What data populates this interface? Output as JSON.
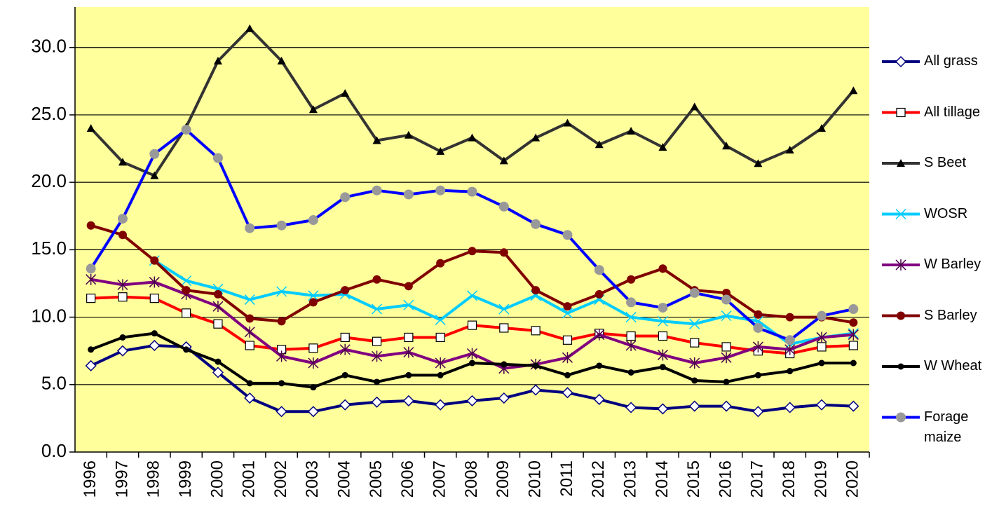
{
  "chart_data": {
    "type": "line",
    "categories": [
      "1996",
      "1997",
      "1998",
      "1999",
      "2000",
      "2001",
      "2002",
      "2003",
      "2004",
      "2005",
      "2006",
      "2007",
      "2008",
      "2009",
      "2010",
      "2011",
      "2012",
      "2013",
      "2014",
      "2015",
      "2016",
      "2017",
      "2018",
      "2019",
      "2020"
    ],
    "series": [
      {
        "name": "All grass",
        "color": "#000080",
        "marker": "diamond",
        "values": [
          6.4,
          7.5,
          7.9,
          7.8,
          5.9,
          4.0,
          3.0,
          3.0,
          3.5,
          3.7,
          3.8,
          3.5,
          3.8,
          4.0,
          4.6,
          4.4,
          3.9,
          3.3,
          3.2,
          3.4,
          3.4,
          3.0,
          3.3,
          3.5,
          3.4
        ]
      },
      {
        "name": "All tillage",
        "color": "#ff0000",
        "marker": "square",
        "values": [
          11.4,
          11.5,
          11.4,
          10.3,
          9.5,
          7.9,
          7.6,
          7.7,
          8.5,
          8.2,
          8.5,
          8.5,
          9.4,
          9.2,
          9.0,
          8.3,
          8.8,
          8.6,
          8.6,
          8.1,
          7.8,
          7.5,
          7.3,
          7.8,
          7.9
        ]
      },
      {
        "name": "S Beet",
        "color": "#333333",
        "marker": "triangle",
        "values": [
          24.0,
          21.5,
          20.5,
          24.1,
          29.0,
          31.4,
          29.0,
          25.4,
          26.6,
          23.1,
          23.5,
          22.3,
          23.3,
          21.6,
          23.3,
          24.4,
          22.8,
          23.8,
          22.6,
          25.6,
          22.7,
          21.4,
          22.4,
          24.0,
          26.8
        ]
      },
      {
        "name": "WOSR",
        "color": "#00ccff",
        "marker": "x",
        "values": [
          null,
          null,
          14.2,
          12.7,
          12.1,
          11.3,
          11.9,
          11.6,
          11.7,
          10.6,
          10.9,
          9.8,
          11.6,
          10.6,
          11.6,
          10.3,
          11.3,
          10.0,
          9.7,
          9.5,
          10.1,
          9.7,
          8.0,
          8.5,
          8.8
        ]
      },
      {
        "name": "W Barley",
        "color": "#800080",
        "marker": "star",
        "values": [
          12.8,
          12.4,
          12.6,
          11.7,
          10.8,
          8.9,
          7.1,
          6.6,
          7.6,
          7.1,
          7.4,
          6.6,
          7.3,
          6.2,
          6.5,
          7.0,
          8.7,
          7.9,
          7.2,
          6.6,
          7.0,
          7.8,
          7.6,
          8.5,
          8.7
        ]
      },
      {
        "name": "S Barley",
        "color": "#800000",
        "marker": "circle",
        "values": [
          16.8,
          16.1,
          14.2,
          12.0,
          11.7,
          9.9,
          9.7,
          11.1,
          12.0,
          12.8,
          12.3,
          14.0,
          14.9,
          14.8,
          12.0,
          10.8,
          11.7,
          12.8,
          13.6,
          12.0,
          11.8,
          10.2,
          10.0,
          10.0,
          9.6
        ]
      },
      {
        "name": "W Wheat",
        "color": "#000000",
        "marker": "dot",
        "values": [
          7.6,
          8.5,
          8.8,
          7.6,
          6.7,
          5.1,
          5.1,
          4.8,
          5.7,
          5.2,
          5.7,
          5.7,
          6.6,
          6.5,
          6.4,
          5.7,
          6.4,
          5.9,
          6.3,
          5.3,
          5.2,
          5.7,
          6.0,
          6.6,
          6.6
        ]
      },
      {
        "name": "Forage maize",
        "color": "#0000ff",
        "marker": "graycircle",
        "values": [
          13.6,
          17.3,
          22.1,
          23.9,
          21.8,
          16.6,
          16.8,
          17.2,
          18.9,
          19.4,
          19.1,
          19.4,
          19.3,
          18.2,
          16.9,
          16.1,
          13.5,
          11.1,
          10.7,
          11.8,
          11.3,
          9.2,
          8.3,
          10.1,
          10.6
        ]
      }
    ],
    "ylim": [
      0,
      33
    ],
    "yticks": [
      {
        "value": 0,
        "label": "0.0"
      },
      {
        "value": 5,
        "label": "5.0"
      },
      {
        "value": 10,
        "label": "10.0"
      },
      {
        "value": 15,
        "label": "15.0"
      },
      {
        "value": 20,
        "label": "20.0"
      },
      {
        "value": 25,
        "label": "25.0"
      },
      {
        "value": 30,
        "label": "30.0"
      }
    ],
    "grid": true,
    "background": "#ffff9c",
    "legend": "right"
  }
}
